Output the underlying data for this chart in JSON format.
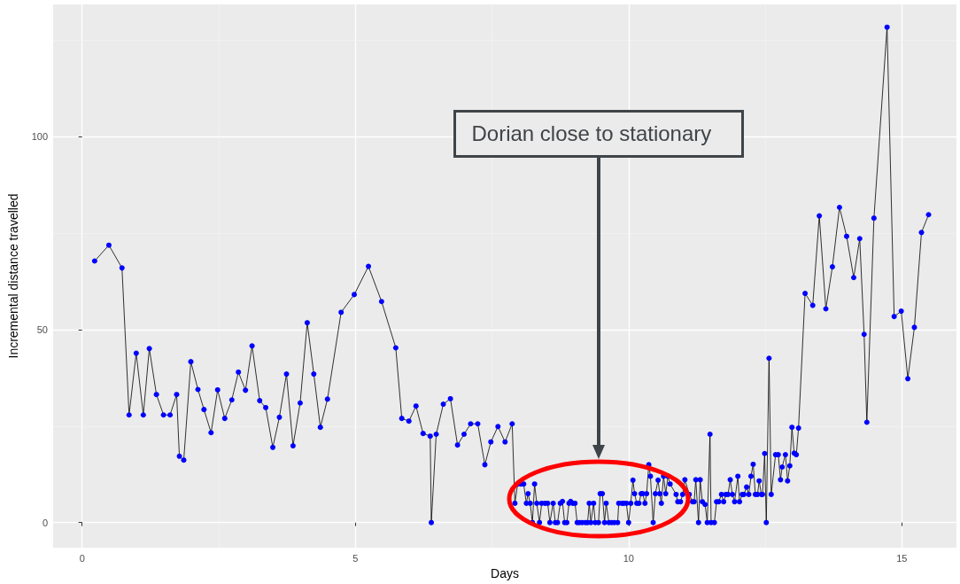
{
  "chart_data": {
    "type": "line",
    "xlabel": "Days",
    "ylabel": "Incremental distance travelled",
    "marker": "circle",
    "line_style": "solid",
    "grid": true,
    "xlim": [
      -0.53,
      16.0
    ],
    "xticks": [
      0,
      5,
      10,
      15
    ],
    "ylim": [
      -6.5,
      134.3
    ],
    "yticks": [
      0,
      50,
      100
    ],
    "annotations": [
      "Dorian close to stationary"
    ],
    "series": [
      {
        "color": "#0000ff",
        "x": [
          0.23,
          0.49,
          0.73,
          0.86,
          0.99,
          1.12,
          1.23,
          1.36,
          1.49,
          1.61,
          1.73,
          1.78,
          1.86,
          1.99,
          2.12,
          2.23,
          2.36,
          2.48,
          2.61,
          2.74,
          2.86,
          2.99,
          3.11,
          3.25,
          3.36,
          3.49,
          3.61,
          3.74,
          3.86,
          3.99,
          4.12,
          4.24,
          4.36,
          4.49,
          4.74,
          4.98,
          5.24,
          5.48,
          5.74,
          5.85,
          5.98,
          6.11,
          6.24,
          6.37,
          6.39,
          6.48,
          6.61,
          6.74,
          6.87,
          6.99,
          7.11,
          7.24,
          7.37,
          7.48,
          7.61,
          7.74,
          7.87,
          7.92,
          7.97,
          8.03,
          8.08,
          8.13,
          8.16,
          8.2,
          8.24,
          8.28,
          8.32,
          8.37,
          8.41,
          8.47,
          8.52,
          8.56,
          8.62,
          8.66,
          8.7,
          8.75,
          8.79,
          8.83,
          8.87,
          8.91,
          8.94,
          8.98,
          9.02,
          9.06,
          9.1,
          9.15,
          9.21,
          9.25,
          9.28,
          9.31,
          9.36,
          9.39,
          9.45,
          9.48,
          9.52,
          9.56,
          9.59,
          9.64,
          9.69,
          9.74,
          9.8,
          9.82,
          9.88,
          9.91,
          9.96,
          10.0,
          10.04,
          10.08,
          10.11,
          10.15,
          10.19,
          10.23,
          10.26,
          10.3,
          10.33,
          10.37,
          10.4,
          10.45,
          10.49,
          10.54,
          10.57,
          10.6,
          10.64,
          10.68,
          10.72,
          10.76,
          10.87,
          10.9,
          10.95,
          10.99,
          11.03,
          11.11,
          11.17,
          11.2,
          11.23,
          11.28,
          11.31,
          11.35,
          11.4,
          11.44,
          11.49,
          11.51,
          11.57,
          11.61,
          11.65,
          11.7,
          11.74,
          11.78,
          11.82,
          11.86,
          11.9,
          11.94,
          12.0,
          12.03,
          12.08,
          12.11,
          12.16,
          12.2,
          12.24,
          12.28,
          12.32,
          12.36,
          12.39,
          12.43,
          12.45,
          12.49,
          12.52,
          12.57,
          12.61,
          12.69,
          12.74,
          12.78,
          12.81,
          12.87,
          12.91,
          12.95,
          12.99,
          13.03,
          13.07,
          13.11,
          13.23,
          13.37,
          13.49,
          13.61,
          13.73,
          13.86,
          13.99,
          14.12,
          14.23,
          14.31,
          14.36,
          14.49,
          14.73,
          14.86,
          14.99,
          15.11,
          15.23,
          15.36,
          15.49
        ],
        "values": [
          67.8,
          71.9,
          66.0,
          27.9,
          43.9,
          27.9,
          45.1,
          33.2,
          27.9,
          27.9,
          33.2,
          17.2,
          16.2,
          41.7,
          34.5,
          29.3,
          23.3,
          34.4,
          27.0,
          31.8,
          39.0,
          34.3,
          45.8,
          31.6,
          29.8,
          19.5,
          27.3,
          38.5,
          19.9,
          31.0,
          51.8,
          38.5,
          24.7,
          32.0,
          54.5,
          59.1,
          66.4,
          57.3,
          45.3,
          27.0,
          26.3,
          30.2,
          23.1,
          22.4,
          0,
          22.9,
          30.7,
          32.1,
          20.1,
          22.9,
          25.6,
          25.6,
          15.0,
          20.9,
          24.9,
          20.9,
          25.6,
          5,
          10,
          10,
          10,
          5,
          7.5,
          5,
          0,
          10,
          5,
          0,
          5,
          5,
          5,
          0,
          5,
          0,
          0,
          5,
          5.5,
          0,
          0,
          5,
          5.5,
          5,
          5,
          0,
          0,
          0,
          0,
          0,
          5,
          0,
          5,
          0,
          0,
          7.5,
          7.5,
          0,
          5,
          0,
          0,
          0,
          0,
          5,
          5,
          5,
          5,
          0,
          5,
          11,
          7.5,
          5,
          5,
          7.5,
          7.5,
          5,
          7.5,
          15,
          12,
          0,
          7.5,
          11,
          7.5,
          5,
          12,
          7.5,
          12,
          10,
          7.3,
          5.4,
          5.4,
          7.3,
          11.1,
          7.3,
          5.4,
          5.4,
          11.1,
          0,
          11.1,
          5.4,
          4.7,
          0,
          22.9,
          0,
          0,
          5.4,
          5.4,
          7.3,
          5.4,
          7.3,
          7.3,
          11.1,
          7.3,
          5.4,
          12,
          5.4,
          7.3,
          7.3,
          9.2,
          7.3,
          12,
          15.1,
          7.3,
          7.3,
          10.8,
          7.3,
          7.3,
          17.9,
          0,
          42.6,
          7.3,
          17.6,
          17.6,
          11.1,
          14.4,
          17.6,
          10.8,
          14.7,
          24.7,
          18.0,
          17.6,
          24.5,
          59.4,
          56.3,
          79.5,
          55.4,
          66.3,
          81.7,
          74.2,
          63.5,
          73.6,
          48.8,
          26.0,
          78.9,
          128.4,
          53.4,
          54.8,
          37.3,
          50.6,
          75.2,
          79.8
        ]
      }
    ]
  }
}
